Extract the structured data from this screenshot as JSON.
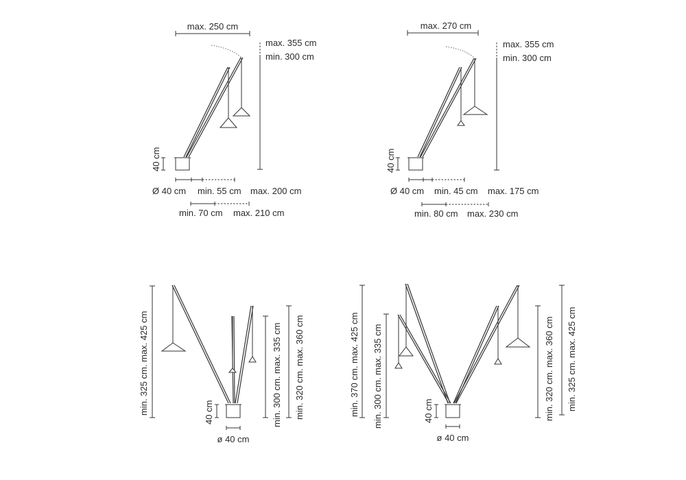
{
  "diagrams": [
    {
      "id": "top-left",
      "labels": {
        "width_max": "max. 250 cm",
        "height_max": "max. 355 cm",
        "height_min": "min. 300 cm",
        "base_height": "40 cm",
        "base_diameter": "Ø 40 cm",
        "reach1_min": "min. 55 cm",
        "reach1_max": "max. 200 cm",
        "reach2_min": "min. 70 cm",
        "reach2_max": "max. 210 cm"
      }
    },
    {
      "id": "top-right",
      "labels": {
        "width_max": "max. 270 cm",
        "height_max": "max. 355 cm",
        "height_min": "min. 300 cm",
        "base_height": "40 cm",
        "base_diameter": "Ø 40 cm",
        "reach1_min": "min. 45 cm",
        "reach1_max": "max. 175 cm",
        "reach2_min": "min. 80 cm",
        "reach2_max": "max. 230 cm"
      }
    },
    {
      "id": "bottom-left",
      "labels": {
        "left_height": "min. 325 cm. max. 425 cm",
        "base_height": "40 cm",
        "base_diameter": "ø 40 cm",
        "right_height1": "min. 300 cm. max. 335 cm",
        "right_height2": "min. 320 cm. max. 360 cm"
      }
    },
    {
      "id": "bottom-right",
      "labels": {
        "left_height1": "min. 370 cm. max. 425 cm",
        "left_height2": "min. 300 cm. max. 335 cm",
        "base_height": "40 cm",
        "base_diameter": "ø 40 cm",
        "right_height1": "min. 320 cm. max. 360 cm",
        "right_height2": "min. 325 cm. max. 425 cm"
      }
    }
  ]
}
